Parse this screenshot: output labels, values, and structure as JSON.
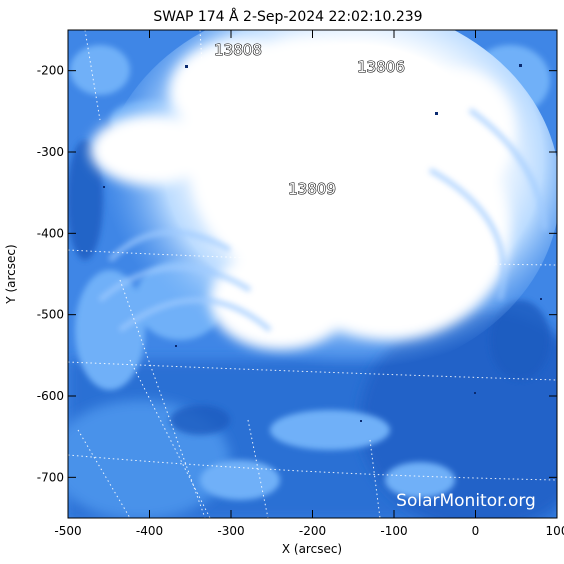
{
  "image": {
    "title": "SWAP 174 Å  2-Sep-2024 22:02:10.239",
    "credit": "SolarMonitor.org",
    "x_axis": {
      "label": "X (arcsec)",
      "ticks": [
        "-500",
        "-400",
        "-300",
        "-200",
        "-100",
        "0",
        "100"
      ],
      "tick_values": [
        -500,
        -400,
        -300,
        -200,
        -100,
        0,
        100
      ],
      "range": [
        -500,
        100
      ]
    },
    "y_axis": {
      "label": "Y (arcsec)",
      "ticks": [
        "-200",
        "-300",
        "-400",
        "-500",
        "-600",
        "-700"
      ],
      "tick_values": [
        -200,
        -300,
        -400,
        -500,
        -600,
        -700
      ],
      "range": [
        -750,
        -150
      ]
    },
    "regions": [
      {
        "label": "13808",
        "x": -285,
        "y": -175
      },
      {
        "label": "13806",
        "x": -110,
        "y": -190
      },
      {
        "label": "13809",
        "x": -205,
        "y": -340
      }
    ],
    "colors": {
      "background": "#ffffff",
      "colormap_dark": "#0a3c96",
      "colormap_mid": "#2f7fe0",
      "colormap_light": "#8cc3ff",
      "saturated": "#ffffff"
    }
  }
}
